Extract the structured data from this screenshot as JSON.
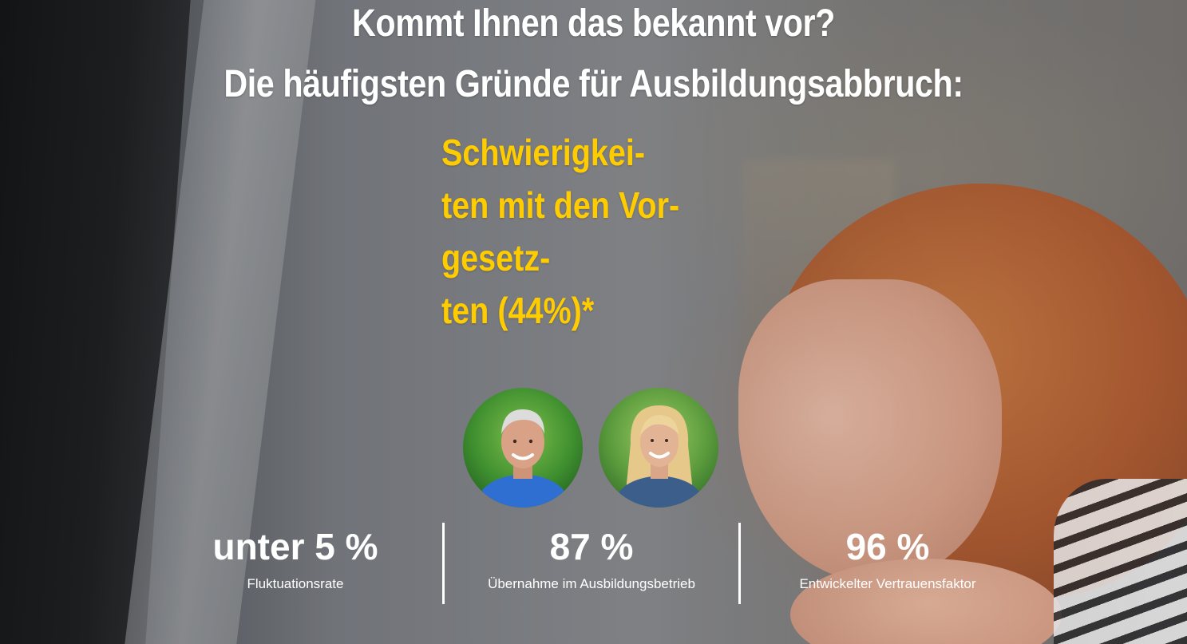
{
  "heading": {
    "line1": "Kommt Ihnen das bekannt vor?",
    "line2": "Die häufigsten Gründe für Ausbildungsabbruch:"
  },
  "reason": {
    "text": "Schwierigkei-\nten mit den Vor-\ngesetz-\nten (44%)*"
  },
  "avatars": [
    {
      "name": "man-portrait"
    },
    {
      "name": "woman-portrait"
    }
  ],
  "stats": [
    {
      "value": "unter 5 %",
      "label": "Fluktuationsrate"
    },
    {
      "value": "87 %",
      "label": "Übernahme im Ausbildungsbetrieb"
    },
    {
      "value": "96 %",
      "label": "Entwickelter Vertrauensfaktor"
    }
  ],
  "colors": {
    "heading": "#ffffff",
    "accent": "#ffcc00",
    "stat_text": "#ffffff",
    "divider": "#ffffff"
  }
}
